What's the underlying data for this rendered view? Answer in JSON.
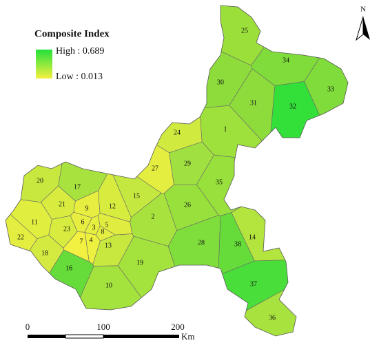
{
  "map": {
    "title": "Composite Index",
    "legend": {
      "high": "High : 0.689",
      "low": "Low : 0.013",
      "high_color": "#22e03a",
      "low_color": "#f4f040"
    },
    "north": "N",
    "scale": {
      "labels": [
        "0",
        "100",
        "200"
      ],
      "unit": "Km"
    },
    "regions": [
      {
        "label": "1",
        "color": "#9ee03c"
      },
      {
        "label": "2",
        "color": "#a8e23e"
      },
      {
        "label": "3",
        "color": "#e6ee40"
      },
      {
        "label": "4",
        "color": "#eef040"
      },
      {
        "label": "5",
        "color": "#e0ec40"
      },
      {
        "label": "6",
        "color": "#e8ee40"
      },
      {
        "label": "7",
        "color": "#f2f040"
      },
      {
        "label": "8",
        "color": "#e4ee40"
      },
      {
        "label": "9",
        "color": "#e8ee40"
      },
      {
        "label": "10",
        "color": "#a4e23e"
      },
      {
        "label": "11",
        "color": "#e0ee40"
      },
      {
        "label": "12",
        "color": "#d8ec40"
      },
      {
        "label": "13",
        "color": "#c8e840"
      },
      {
        "label": "14",
        "color": "#b4e43e"
      },
      {
        "label": "15",
        "color": "#c4e840"
      },
      {
        "label": "16",
        "color": "#66dc3a"
      },
      {
        "label": "17",
        "color": "#a8e23e"
      },
      {
        "label": "18",
        "color": "#d4ea40"
      },
      {
        "label": "19",
        "color": "#a4e23e"
      },
      {
        "label": "20",
        "color": "#c8e840"
      },
      {
        "label": "21",
        "color": "#d8ec40"
      },
      {
        "label": "22",
        "color": "#e4ee40"
      },
      {
        "label": "23",
        "color": "#d8ec40"
      },
      {
        "label": "24",
        "color": "#d0ea40"
      },
      {
        "label": "25",
        "color": "#9be03a"
      },
      {
        "label": "26",
        "color": "#98e03c"
      },
      {
        "label": "27",
        "color": "#e4ee40"
      },
      {
        "label": "28",
        "color": "#80de3c"
      },
      {
        "label": "29",
        "color": "#a0e040"
      },
      {
        "label": "30",
        "color": "#8ddc3c"
      },
      {
        "label": "31",
        "color": "#8ddc3c"
      },
      {
        "label": "32",
        "color": "#33e03a"
      },
      {
        "label": "33",
        "color": "#7fdc3a"
      },
      {
        "label": "34",
        "color": "#7fdc3a"
      },
      {
        "label": "35",
        "color": "#98e03c"
      },
      {
        "label": "36",
        "color": "#a8e23e"
      },
      {
        "label": "37",
        "color": "#4ade3a"
      },
      {
        "label": "38",
        "color": "#66dc3a"
      }
    ]
  }
}
